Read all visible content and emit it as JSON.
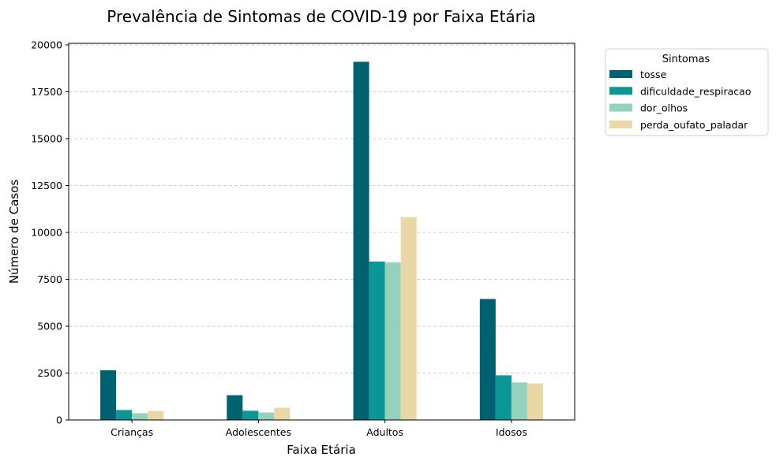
{
  "chart_data": {
    "type": "bar",
    "title": "Prevalência de Sintomas de COVID-19 por Faixa Etária",
    "xlabel": "Faixa Etária",
    "ylabel": "Número de Casos",
    "categories": [
      "Crianças",
      "Adolescentes",
      "Adultos",
      "Idosos"
    ],
    "ylim": [
      0,
      20000
    ],
    "yticks": [
      0,
      2500,
      5000,
      7500,
      10000,
      12500,
      15000,
      17500,
      20000
    ],
    "grid": "y-dashed",
    "legend": {
      "title": "Sintomas",
      "placement": "outside-top-right"
    },
    "series": [
      {
        "name": "tosse",
        "color": "#006170",
        "values": [
          2650,
          1320,
          19100,
          6450
        ]
      },
      {
        "name": "dificuldade_respiracao",
        "color": "#0d9696",
        "values": [
          530,
          490,
          8450,
          2380
        ]
      },
      {
        "name": "dor_olhos",
        "color": "#94d2bd",
        "values": [
          360,
          400,
          8400,
          2000
        ]
      },
      {
        "name": "perda_oufato_paladar",
        "color": "#e9d8a6",
        "values": [
          480,
          650,
          10820,
          1950
        ]
      }
    ]
  }
}
